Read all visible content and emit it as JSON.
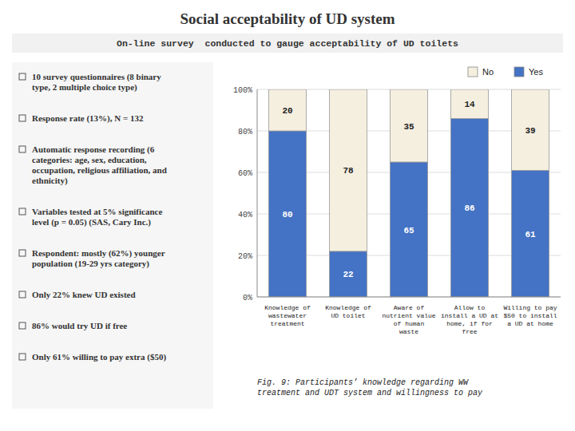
{
  "chart_data": {
    "type": "bar",
    "stacked": true,
    "title": "Social acceptability of UD system",
    "subtitle": "On-line survey  conducted to gauge acceptability of UD toilets",
    "categories": [
      "Knowledge of\nwastewater\ntreatment",
      "Knowledge of\nUD toilet",
      "Aware of\nnutrient value\nof human\nwaste",
      "Allow to\ninstall a UD at\nhome, if for\nfree",
      "Willing to pay\n$50 to install\na UD at home"
    ],
    "series": [
      {
        "name": "Yes",
        "color": "#4472c4",
        "values": [
          80,
          22,
          65,
          86,
          61
        ]
      },
      {
        "name": "No",
        "color": "#f5efe0",
        "values": [
          20,
          78,
          35,
          14,
          39
        ]
      }
    ],
    "ylim": [
      0,
      100
    ],
    "yticks": [
      {
        "value": 0,
        "label": "0%"
      },
      {
        "value": 20,
        "label": "20%"
      },
      {
        "value": 40,
        "label": "40%"
      },
      {
        "value": 60,
        "label": "60%"
      },
      {
        "value": 80,
        "label": "80%"
      },
      {
        "value": 100,
        "label": "100%"
      }
    ],
    "grid": true,
    "legend": "top",
    "data_labels": true,
    "annotations": [
      "10 survey questionnaires (8 binary\ntype, 2 multiple choice type)",
      "Response rate (13%), N = 132",
      "Automatic response recording (6\ncategories: age, sex, education,\noccupation, religious affiliation, and\nethnicity)",
      "Variables tested at 5% significance\nlevel (p = 0.05)  (SAS, Cary Inc.)",
      "Respondent: mostly (62%) younger\npopulation (19-29 yrs category)",
      "Only 22% knew UD existed",
      "86% would try UD if free",
      "Only 61% willing to pay extra ($50)"
    ],
    "caption": "Fig. 9: Participants’ knowledge regarding WW\ntreatment and UDT system and willingness to pay"
  }
}
